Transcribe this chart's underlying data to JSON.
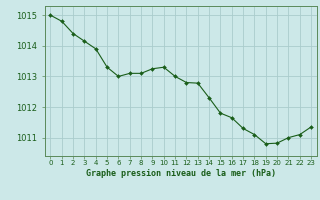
{
  "x": [
    0,
    1,
    2,
    3,
    4,
    5,
    6,
    7,
    8,
    9,
    10,
    11,
    12,
    13,
    14,
    15,
    16,
    17,
    18,
    19,
    20,
    21,
    22,
    23
  ],
  "y": [
    1015.0,
    1014.8,
    1014.4,
    1014.15,
    1013.9,
    1013.3,
    1013.0,
    1013.1,
    1013.1,
    1013.25,
    1013.3,
    1013.0,
    1012.8,
    1012.78,
    1012.3,
    1011.8,
    1011.65,
    1011.3,
    1011.1,
    1010.8,
    1010.82,
    1011.0,
    1011.1,
    1011.35
  ],
  "line_color": "#1a5e1a",
  "marker_color": "#1a5e1a",
  "bg_color": "#cce8e8",
  "grid_color": "#aacccc",
  "xlabel": "Graphe pression niveau de la mer (hPa)",
  "xlabel_color": "#1a5e1a",
  "tick_color": "#1a5e1a",
  "ylim": [
    1010.4,
    1015.3
  ],
  "yticks": [
    1011,
    1012,
    1013,
    1014,
    1015
  ],
  "xtick_labels": [
    "0",
    "1",
    "2",
    "3",
    "4",
    "5",
    "6",
    "7",
    "8",
    "9",
    "10",
    "11",
    "12",
    "13",
    "14",
    "15",
    "16",
    "17",
    "18",
    "19",
    "20",
    "21",
    "22",
    "23"
  ],
  "axis_color": "#5a8a5a"
}
